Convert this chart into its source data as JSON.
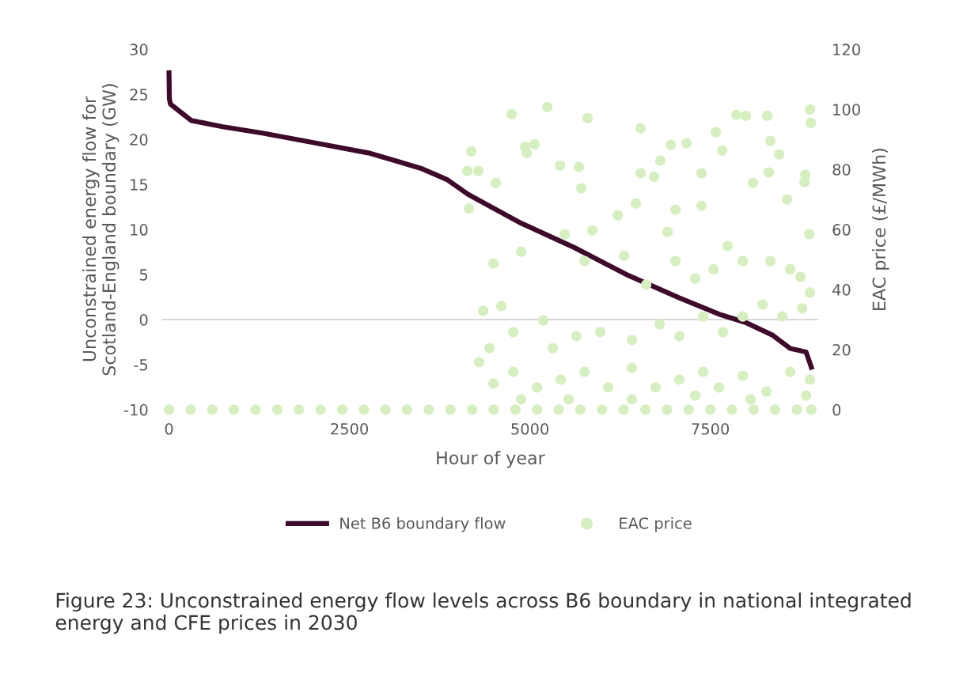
{
  "chart_data": {
    "type": "line",
    "xlabel": "Hour of year",
    "ylabel": "Unconstrained energy flow for\nScotland-England boundary (GW)",
    "y2label": "EAC price (£/MWh)",
    "xlim": [
      -100,
      9000
    ],
    "xticks": [
      0,
      2500,
      5000,
      7500
    ],
    "ylim": [
      -10,
      30
    ],
    "yticks": [
      -10,
      -5,
      0,
      5,
      10,
      15,
      20,
      25,
      30
    ],
    "y2lim": [
      0,
      120
    ],
    "y2ticks": [
      0,
      20,
      40,
      60,
      80,
      100,
      120
    ],
    "grid": false,
    "legend": "bottom",
    "ref_lines": [
      {
        "axis": "y",
        "value": 0,
        "label": null,
        "color": "#d9d9d9"
      }
    ],
    "series": [
      {
        "name": "Net B6 boundary flow",
        "color": "#3d0a2c",
        "marker": "none",
        "line_style": "solid",
        "x": [
          0,
          5,
          22,
          307,
          746,
          1294,
          2029,
          2763,
          3487,
          3860,
          4145,
          4441,
          4879,
          5614,
          6338,
          7072,
          7621,
          7982,
          8355,
          8607,
          8827,
          8900
        ],
        "values": [
          27.4,
          24.5,
          23.9,
          22.1,
          21.4,
          20.7,
          19.6,
          18.5,
          16.8,
          15.5,
          13.9,
          12.6,
          10.7,
          8.0,
          5.0,
          2.4,
          0.6,
          -0.3,
          -1.7,
          -3.2,
          -3.6,
          -5.3
        ]
      },
      {
        "name": "EAC price",
        "type": "scatter",
        "axis": "y2",
        "color": "#d6efc0",
        "marker": "circle",
        "x": [
          0,
          300,
          600,
          900,
          1200,
          1500,
          1800,
          2100,
          2400,
          2700,
          3000,
          3300,
          3600,
          3900,
          4200,
          4500,
          4800,
          5100,
          5400,
          5700,
          6000,
          6300,
          6600,
          6900,
          7200,
          7500,
          7800,
          8100,
          8400,
          8700,
          8900,
          4156,
          4189,
          4134,
          4287,
          4528,
          4748,
          4934,
          4956,
          5066,
          5241,
          5417,
          5800,
          5866,
          5680,
          5713,
          6217,
          6469,
          6535,
          6721,
          6535,
          6809,
          6952,
          6908,
          7018,
          7171,
          7379,
          7577,
          7665,
          7862,
          7993,
          8289,
          8333,
          8454,
          8805,
          8882,
          8893,
          8871,
          8816,
          8311,
          8563,
          8092,
          7379,
          7741,
          4879,
          4496,
          4353,
          4605,
          5186,
          5482,
          5757,
          6305,
          6612,
          7018,
          7292,
          7544,
          7950,
          8333,
          8607,
          8750,
          4298,
          4441,
          4770,
          5318,
          5647,
          5976,
          6414,
          6798,
          7072,
          7401,
          7675,
          7950,
          8224,
          8498,
          8772,
          8882,
          4496,
          4770,
          5099,
          5428,
          5757,
          6086,
          6414,
          6743,
          7072,
          7401,
          7621,
          7950,
          8279,
          8607,
          8882,
          8827,
          8059,
          7292,
          6414,
          5537,
          4879
        ],
        "values": [
          0,
          0,
          0,
          0,
          0,
          0,
          0,
          0,
          0,
          0,
          0,
          0,
          0,
          0,
          0,
          0,
          0,
          0,
          0,
          0,
          0,
          0,
          0,
          0,
          0,
          0,
          0,
          0,
          0,
          0,
          0,
          67,
          86,
          79.5,
          79.5,
          75.5,
          98.4,
          87.6,
          85.5,
          88.4,
          100.8,
          81.3,
          97.1,
          59.7,
          80.8,
          73.7,
          64.7,
          68.7,
          78.7,
          77.6,
          93.7,
          82.9,
          88.2,
          59.2,
          66.6,
          88.7,
          78.7,
          92.4,
          86.3,
          98.2,
          97.9,
          97.9,
          89.5,
          85,
          75.8,
          100,
          95.5,
          58.4,
          78.2,
          79,
          70,
          75.5,
          67.9,
          54.5,
          52.6,
          48.7,
          32.9,
          34.5,
          29.7,
          58.4,
          49.5,
          51.3,
          41.6,
          49.5,
          43.7,
          46.8,
          49.5,
          49.5,
          46.8,
          44.2,
          15.8,
          20.5,
          25.8,
          20.5,
          24.5,
          25.8,
          23.2,
          28.4,
          24.5,
          31,
          25.8,
          31,
          35,
          31,
          33.7,
          39,
          8.7,
          12.6,
          7.4,
          10,
          12.6,
          7.4,
          13.9,
          7.4,
          10,
          12.6,
          7.4,
          11.3,
          6,
          12.6,
          10,
          4.7,
          3.4,
          4.7,
          3.4,
          3.4,
          3.4
        ]
      }
    ],
    "annotations": [
      "Figure 23: Unconstrained energy flow levels across B6 boundary in national integrated energy and CFE prices in 2030"
    ]
  }
}
